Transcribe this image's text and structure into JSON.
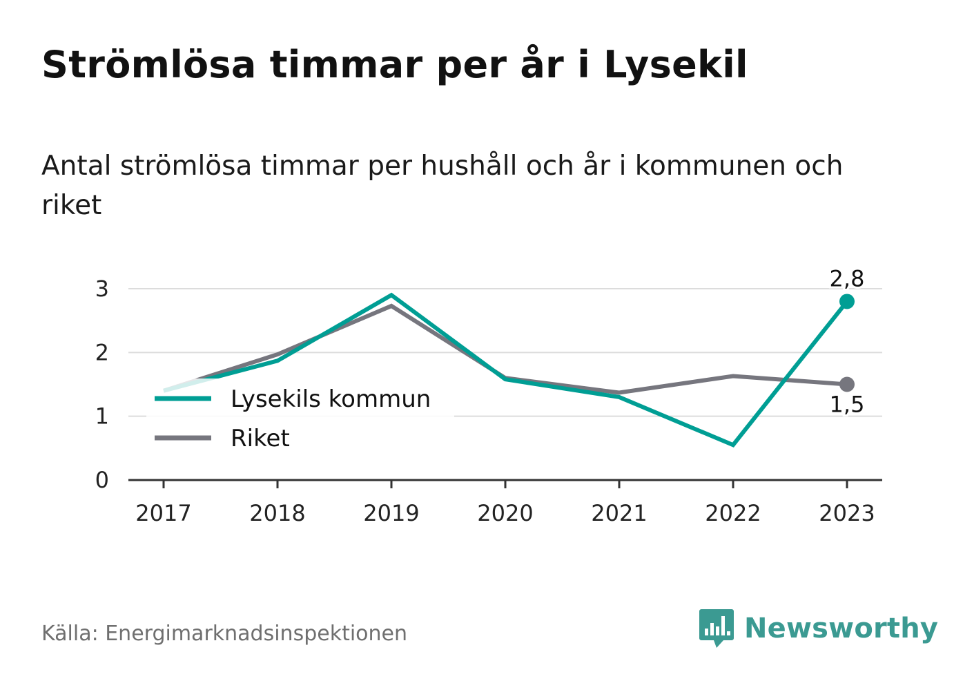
{
  "title": "Strömlösa timmar per år i Lysekil",
  "subtitle": "Antal strömlösa timmar per hushåll och år i kommunen och riket",
  "source": "Källa: Energimarknadsinspektionen",
  "brand": {
    "name": "Newsworthy",
    "icon": "newsworthy-logo-icon",
    "color": "#3b9a92"
  },
  "chart_data": {
    "type": "line",
    "x": [
      "2017",
      "2018",
      "2019",
      "2020",
      "2021",
      "2022",
      "2023"
    ],
    "series": [
      {
        "name": "Lysekils kommun",
        "color": "#009e94",
        "values": [
          1.4,
          1.87,
          2.9,
          1.58,
          1.3,
          0.55,
          2.8
        ],
        "end_label": "2,8"
      },
      {
        "name": "Riket",
        "color": "#76767e",
        "values": [
          1.4,
          1.97,
          2.73,
          1.6,
          1.37,
          1.63,
          1.5
        ],
        "end_label": "1,5"
      }
    ],
    "yticks": [
      "0",
      "1",
      "2",
      "3"
    ],
    "ylim": [
      0,
      3
    ],
    "grid": true,
    "legend": "bottom-left"
  }
}
